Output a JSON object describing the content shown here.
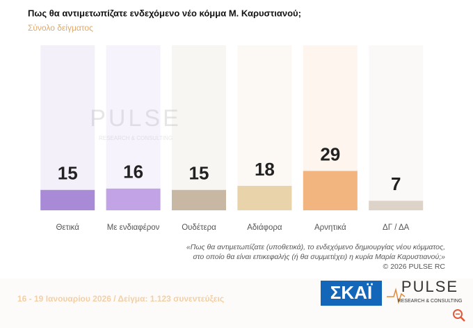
{
  "chart_data": {
    "type": "bar",
    "title": "Πως θα αντιμετωπίζατε ενδεχόμενο νέο κόμμα Μ. Καρυστιανού;",
    "subtitle": "Σύνολο δείγματος",
    "categories": [
      "Θετικά",
      "Με ενδιαφέρον",
      "Ουδέτερα",
      "Αδιάφορα",
      "Αρνητικά",
      "ΔΓ / ΔΑ"
    ],
    "values": [
      15,
      16,
      15,
      18,
      29,
      7
    ],
    "colors": [
      "#a88ad6",
      "#c2a3e6",
      "#c8b7a3",
      "#e9d3ab",
      "#f2b57f",
      "#ddd3c8"
    ],
    "note": [
      "«Πως θα αντιμετωπίζατε (υποθετικά), το ενδεχόμενο δημιουργίας νέου κόμματος,",
      "στο οποίο θα είναι επικεφαλής (ή θα συμμετέχει) η κυρία Μαρία Καρυστιανού;»"
    ],
    "copyright": "©  2026  PULSE RC",
    "footer": "16 - 19 Ιανουαρίου 2026  /  Δείγμα:  1.123 συνεντεύξεις",
    "logo_left": "ΣΚΑΪ",
    "logo_right": "PULSE",
    "logo_right_sub": "RESEARCH & CONSULTING"
  }
}
